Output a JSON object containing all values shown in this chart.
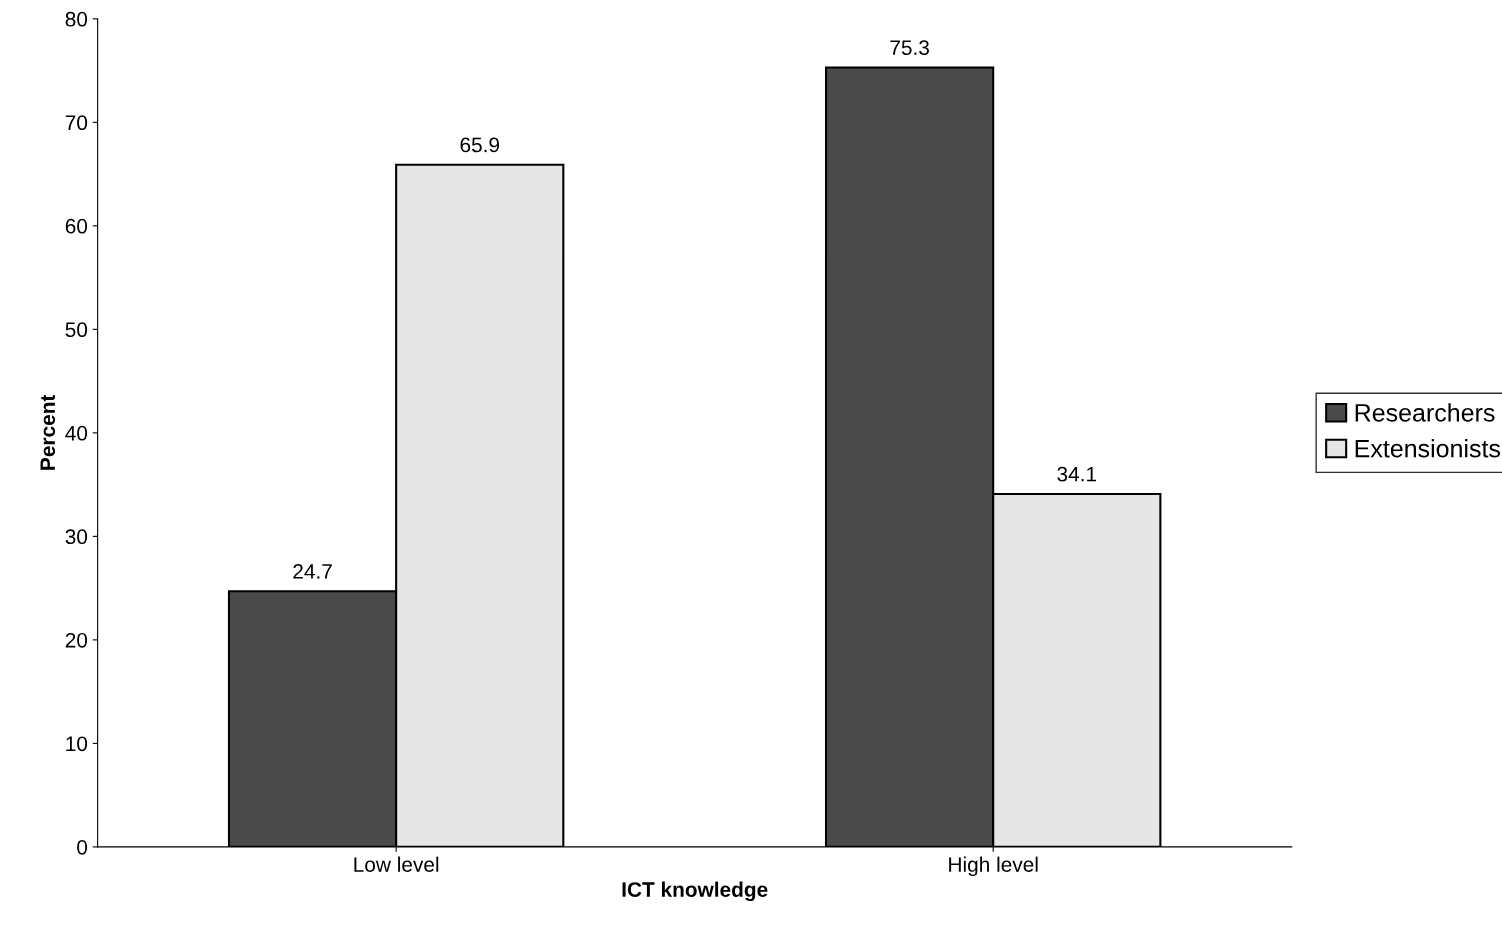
{
  "chart_data": {
    "type": "bar",
    "xlabel": "ICT knowledge",
    "ylabel": "Percent",
    "categories": [
      "Low level",
      "High level"
    ],
    "series": [
      {
        "name": "Researchers",
        "color": "#4a4a4a",
        "values": [
          24.7,
          75.3
        ]
      },
      {
        "name": "Extensionists",
        "color": "#e6e6e6",
        "values": [
          65.9,
          34.1
        ]
      }
    ],
    "ylim": [
      0,
      80
    ],
    "yticks": [
      0,
      10,
      20,
      30,
      40,
      50,
      60,
      70,
      80
    ],
    "data_labels": true,
    "grid": false,
    "legend": "right"
  }
}
